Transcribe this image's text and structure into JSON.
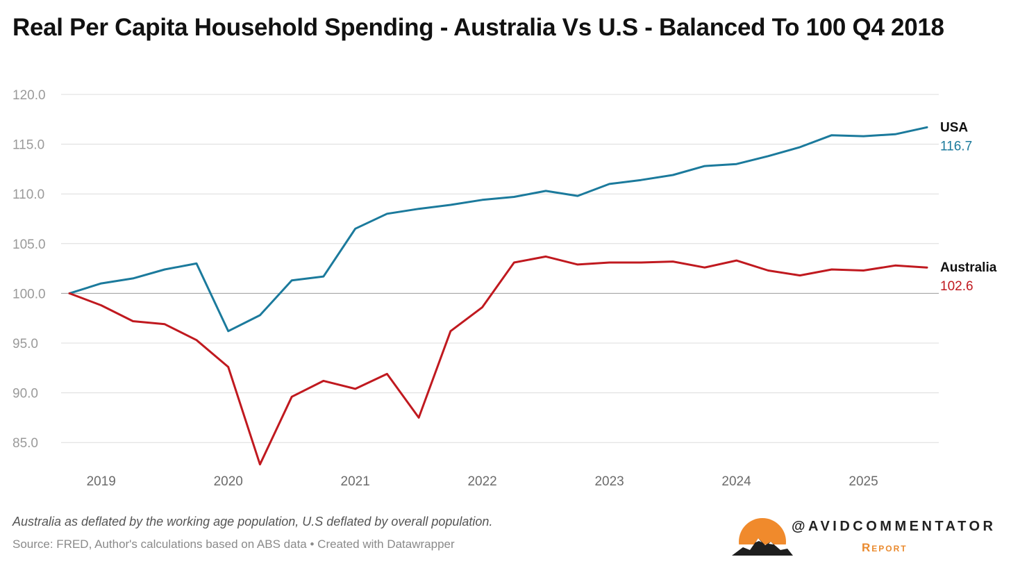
{
  "chart_data": {
    "type": "line",
    "title": "Real Per Capita Household Spending - Australia Vs U.S - Balanced To 100 Q4 2018",
    "ylim": [
      82.0,
      120.0
    ],
    "yticks": [
      "120.0",
      "115.0",
      "110.0",
      "105.0",
      "100.0",
      "95.0",
      "90.0",
      "85.0"
    ],
    "xticks": [
      "2019",
      "2020",
      "2021",
      "2022",
      "2023",
      "2024",
      "2025"
    ],
    "x": [
      "2018-Q4",
      "2019-Q1",
      "2019-Q2",
      "2019-Q3",
      "2019-Q4",
      "2020-Q1",
      "2020-Q2",
      "2020-Q3",
      "2020-Q4",
      "2021-Q1",
      "2021-Q2",
      "2021-Q3",
      "2021-Q4",
      "2022-Q1",
      "2022-Q2",
      "2022-Q3",
      "2022-Q4",
      "2023-Q1",
      "2023-Q2",
      "2023-Q3",
      "2023-Q4",
      "2024-Q1",
      "2024-Q2",
      "2024-Q3",
      "2024-Q4",
      "2025-Q1",
      "2025-Q2",
      "2025-Q3"
    ],
    "grid": true,
    "series": [
      {
        "name": "USA",
        "color": "#1b7a9c",
        "end_label": "116.7",
        "values": [
          100.0,
          101.0,
          101.5,
          102.4,
          103.0,
          96.2,
          97.8,
          101.3,
          101.7,
          106.5,
          108.0,
          108.5,
          108.9,
          109.4,
          109.7,
          110.3,
          109.8,
          111.0,
          111.4,
          111.9,
          112.8,
          113.0,
          113.8,
          114.7,
          115.9,
          115.8,
          116.0,
          116.7
        ]
      },
      {
        "name": "Australia",
        "color": "#c0191f",
        "end_label": "102.6",
        "values": [
          100.0,
          98.8,
          97.2,
          96.9,
          95.3,
          92.6,
          82.8,
          89.6,
          91.2,
          90.4,
          91.9,
          87.5,
          96.2,
          98.6,
          103.1,
          103.7,
          102.9,
          103.1,
          103.1,
          103.2,
          102.6,
          103.3,
          102.3,
          101.8,
          102.4,
          102.3,
          102.8,
          102.6
        ]
      }
    ]
  },
  "footer": {
    "note": "Australia as deflated by the working age population, U.S deflated by overall population.",
    "source": "Source: FRED, Author's calculations based on ABS data • Created with Datawrapper"
  },
  "brand": {
    "handle": "@AVIDCOMMENTATOR",
    "sub": "Report",
    "sun_color": "#f08a2c",
    "logo_icon": "mountain-sun-icon"
  }
}
